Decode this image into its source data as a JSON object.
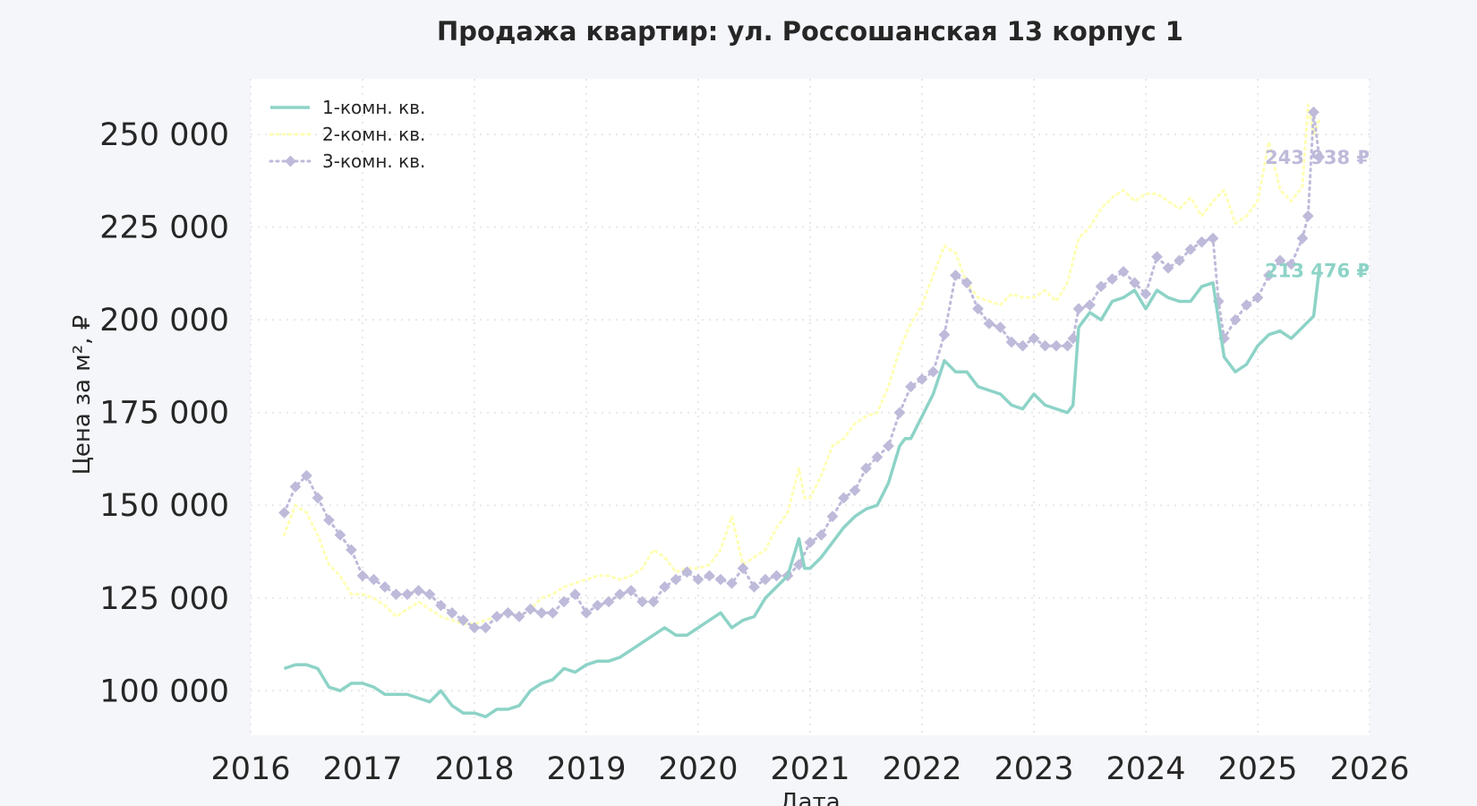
{
  "chart_data": {
    "type": "line",
    "title": "Продажа квартир: ул. Россошанская 13 корпус 1",
    "xlabel": "Дата",
    "ylabel": "Цена за м², ₽",
    "xlim": [
      2016,
      2026
    ],
    "ylim": [
      88000,
      265000
    ],
    "x_ticks": [
      2016,
      2017,
      2018,
      2019,
      2020,
      2021,
      2022,
      2023,
      2024,
      2025,
      2026
    ],
    "x_tick_labels": [
      "2016",
      "2017",
      "2018",
      "2019",
      "2020",
      "2021",
      "2022",
      "2023",
      "2024",
      "2025",
      "2026"
    ],
    "y_ticks": [
      100000,
      125000,
      150000,
      175000,
      200000,
      225000,
      250000
    ],
    "y_tick_labels": [
      "100 000",
      "125 000",
      "150 000",
      "175 000",
      "200 000",
      "225 000",
      "250 000"
    ],
    "grid": true,
    "legend_position": "top-left",
    "series": [
      {
        "name": "1-комн. кв.",
        "color": "#8dd3c7",
        "style": "solid",
        "x": [
          2016.3,
          2016.4,
          2016.5,
          2016.6,
          2016.7,
          2016.8,
          2016.9,
          2017.0,
          2017.1,
          2017.2,
          2017.3,
          2017.4,
          2017.5,
          2017.6,
          2017.7,
          2017.8,
          2017.9,
          2018.0,
          2018.1,
          2018.2,
          2018.3,
          2018.4,
          2018.5,
          2018.6,
          2018.7,
          2018.8,
          2018.9,
          2019.0,
          2019.1,
          2019.2,
          2019.3,
          2019.4,
          2019.5,
          2019.6,
          2019.7,
          2019.8,
          2019.9,
          2020.0,
          2020.1,
          2020.2,
          2020.3,
          2020.4,
          2020.5,
          2020.6,
          2020.7,
          2020.8,
          2020.9,
          2020.95,
          2021.0,
          2021.1,
          2021.2,
          2021.3,
          2021.4,
          2021.5,
          2021.6,
          2021.7,
          2021.8,
          2021.85,
          2021.9,
          2022.0,
          2022.1,
          2022.2,
          2022.3,
          2022.4,
          2022.5,
          2022.6,
          2022.7,
          2022.8,
          2022.9,
          2023.0,
          2023.1,
          2023.2,
          2023.3,
          2023.35,
          2023.4,
          2023.5,
          2023.6,
          2023.7,
          2023.8,
          2023.9,
          2024.0,
          2024.1,
          2024.2,
          2024.3,
          2024.4,
          2024.5,
          2024.6,
          2024.7,
          2024.8,
          2024.9,
          2025.0,
          2025.1,
          2025.2,
          2025.3,
          2025.4,
          2025.5,
          2025.55
        ],
        "y": [
          106000,
          107000,
          107000,
          106000,
          101000,
          100000,
          102000,
          102000,
          101000,
          99000,
          99000,
          99000,
          98000,
          97000,
          100000,
          96000,
          94000,
          94000,
          93000,
          95000,
          95000,
          96000,
          100000,
          102000,
          103000,
          106000,
          105000,
          107000,
          108000,
          108000,
          109000,
          111000,
          113000,
          115000,
          117000,
          115000,
          115000,
          117000,
          119000,
          121000,
          117000,
          119000,
          120000,
          125000,
          128000,
          131000,
          141000,
          133000,
          133000,
          136000,
          140000,
          144000,
          147000,
          149000,
          150000,
          156000,
          166000,
          168000,
          168000,
          174000,
          180000,
          189000,
          186000,
          186000,
          182000,
          181000,
          180000,
          177000,
          176000,
          180000,
          177000,
          176000,
          175000,
          177000,
          198000,
          202000,
          200000,
          205000,
          206000,
          208000,
          203000,
          208000,
          206000,
          205000,
          205000,
          209000,
          210000,
          190000,
          186000,
          188000,
          193000,
          196000,
          197000,
          195000,
          198000,
          201000,
          213476
        ]
      },
      {
        "name": "2-комн. кв.",
        "color": "#ffffb3",
        "style": "dotted",
        "x": [
          2016.3,
          2016.4,
          2016.5,
          2016.6,
          2016.7,
          2016.8,
          2016.9,
          2017.0,
          2017.1,
          2017.2,
          2017.3,
          2017.4,
          2017.5,
          2017.6,
          2017.7,
          2017.8,
          2017.9,
          2018.0,
          2018.1,
          2018.2,
          2018.3,
          2018.4,
          2018.5,
          2018.6,
          2018.7,
          2018.8,
          2018.9,
          2019.0,
          2019.1,
          2019.2,
          2019.3,
          2019.4,
          2019.5,
          2019.6,
          2019.7,
          2019.8,
          2019.9,
          2020.0,
          2020.1,
          2020.2,
          2020.3,
          2020.4,
          2020.5,
          2020.6,
          2020.7,
          2020.8,
          2020.9,
          2020.95,
          2021.0,
          2021.1,
          2021.2,
          2021.3,
          2021.4,
          2021.5,
          2021.6,
          2021.7,
          2021.8,
          2021.9,
          2022.0,
          2022.1,
          2022.2,
          2022.3,
          2022.4,
          2022.5,
          2022.6,
          2022.7,
          2022.8,
          2022.9,
          2023.0,
          2023.1,
          2023.2,
          2023.3,
          2023.4,
          2023.5,
          2023.6,
          2023.7,
          2023.8,
          2023.9,
          2024.0,
          2024.1,
          2024.2,
          2024.3,
          2024.4,
          2024.5,
          2024.6,
          2024.7,
          2024.8,
          2024.9,
          2025.0,
          2025.1,
          2025.2,
          2025.3,
          2025.4,
          2025.45,
          2025.5,
          2025.55
        ],
        "y": [
          142000,
          150000,
          148000,
          142000,
          134000,
          131000,
          126000,
          126000,
          125000,
          123000,
          120000,
          122000,
          124000,
          122000,
          120000,
          119000,
          118000,
          118000,
          119000,
          120000,
          121000,
          120000,
          122000,
          125000,
          126000,
          128000,
          129000,
          130000,
          131000,
          131000,
          130000,
          131000,
          133000,
          138000,
          136000,
          132000,
          133000,
          133000,
          134000,
          138000,
          147000,
          134000,
          136000,
          138000,
          144000,
          148000,
          160000,
          152000,
          152000,
          158000,
          166000,
          168000,
          172000,
          174000,
          175000,
          182000,
          192000,
          199000,
          204000,
          212000,
          220000,
          218000,
          210000,
          206000,
          205000,
          204000,
          207000,
          206000,
          206000,
          208000,
          205000,
          210000,
          222000,
          225000,
          230000,
          233000,
          235000,
          232000,
          234000,
          234000,
          232000,
          230000,
          233000,
          228000,
          232000,
          235000,
          226000,
          228000,
          232000,
          248000,
          235000,
          232000,
          236000,
          258000,
          250000,
          254000
        ]
      },
      {
        "name": "3-комн. кв.",
        "color": "#bebada",
        "style": "dotted-markers",
        "x": [
          2016.3,
          2016.4,
          2016.5,
          2016.6,
          2016.7,
          2016.8,
          2016.9,
          2017.0,
          2017.1,
          2017.2,
          2017.3,
          2017.4,
          2017.5,
          2017.6,
          2017.7,
          2017.8,
          2017.9,
          2018.0,
          2018.1,
          2018.2,
          2018.3,
          2018.4,
          2018.5,
          2018.6,
          2018.7,
          2018.8,
          2018.9,
          2019.0,
          2019.1,
          2019.2,
          2019.3,
          2019.4,
          2019.5,
          2019.6,
          2019.7,
          2019.8,
          2019.9,
          2020.0,
          2020.1,
          2020.2,
          2020.3,
          2020.4,
          2020.5,
          2020.6,
          2020.7,
          2020.8,
          2020.9,
          2021.0,
          2021.1,
          2021.2,
          2021.3,
          2021.4,
          2021.5,
          2021.6,
          2021.7,
          2021.8,
          2021.9,
          2022.0,
          2022.1,
          2022.2,
          2022.3,
          2022.4,
          2022.5,
          2022.6,
          2022.7,
          2022.8,
          2022.9,
          2023.0,
          2023.1,
          2023.2,
          2023.3,
          2023.35,
          2023.4,
          2023.5,
          2023.6,
          2023.7,
          2023.8,
          2023.9,
          2024.0,
          2024.1,
          2024.2,
          2024.3,
          2024.4,
          2024.5,
          2024.6,
          2024.65,
          2024.7,
          2024.8,
          2024.9,
          2025.0,
          2025.1,
          2025.2,
          2025.3,
          2025.4,
          2025.45,
          2025.5,
          2025.55
        ],
        "y": [
          148000,
          155000,
          158000,
          152000,
          146000,
          142000,
          138000,
          131000,
          130000,
          128000,
          126000,
          126000,
          127000,
          126000,
          123000,
          121000,
          119000,
          117000,
          117000,
          120000,
          121000,
          120000,
          122000,
          121000,
          121000,
          124000,
          126000,
          121000,
          123000,
          124000,
          126000,
          127000,
          124000,
          124000,
          128000,
          130000,
          132000,
          130000,
          131000,
          130000,
          129000,
          133000,
          128000,
          130000,
          131000,
          131000,
          134000,
          140000,
          142000,
          147000,
          152000,
          154000,
          160000,
          163000,
          166000,
          175000,
          182000,
          184000,
          186000,
          196000,
          212000,
          210000,
          203000,
          199000,
          198000,
          194000,
          193000,
          195000,
          193000,
          193000,
          193000,
          195000,
          203000,
          204000,
          209000,
          211000,
          213000,
          210000,
          207000,
          217000,
          214000,
          216000,
          219000,
          221000,
          222000,
          205000,
          195000,
          200000,
          204000,
          206000,
          212000,
          216000,
          215000,
          222000,
          228000,
          256000,
          243938
        ]
      }
    ],
    "annotations": [
      {
        "text": "243 938 ₽",
        "series": "3-комн. кв.",
        "x": 2025.55,
        "y": 243938
      },
      {
        "text": "213 476 ₽",
        "series": "1-комн. кв.",
        "x": 2025.55,
        "y": 213476
      }
    ]
  }
}
